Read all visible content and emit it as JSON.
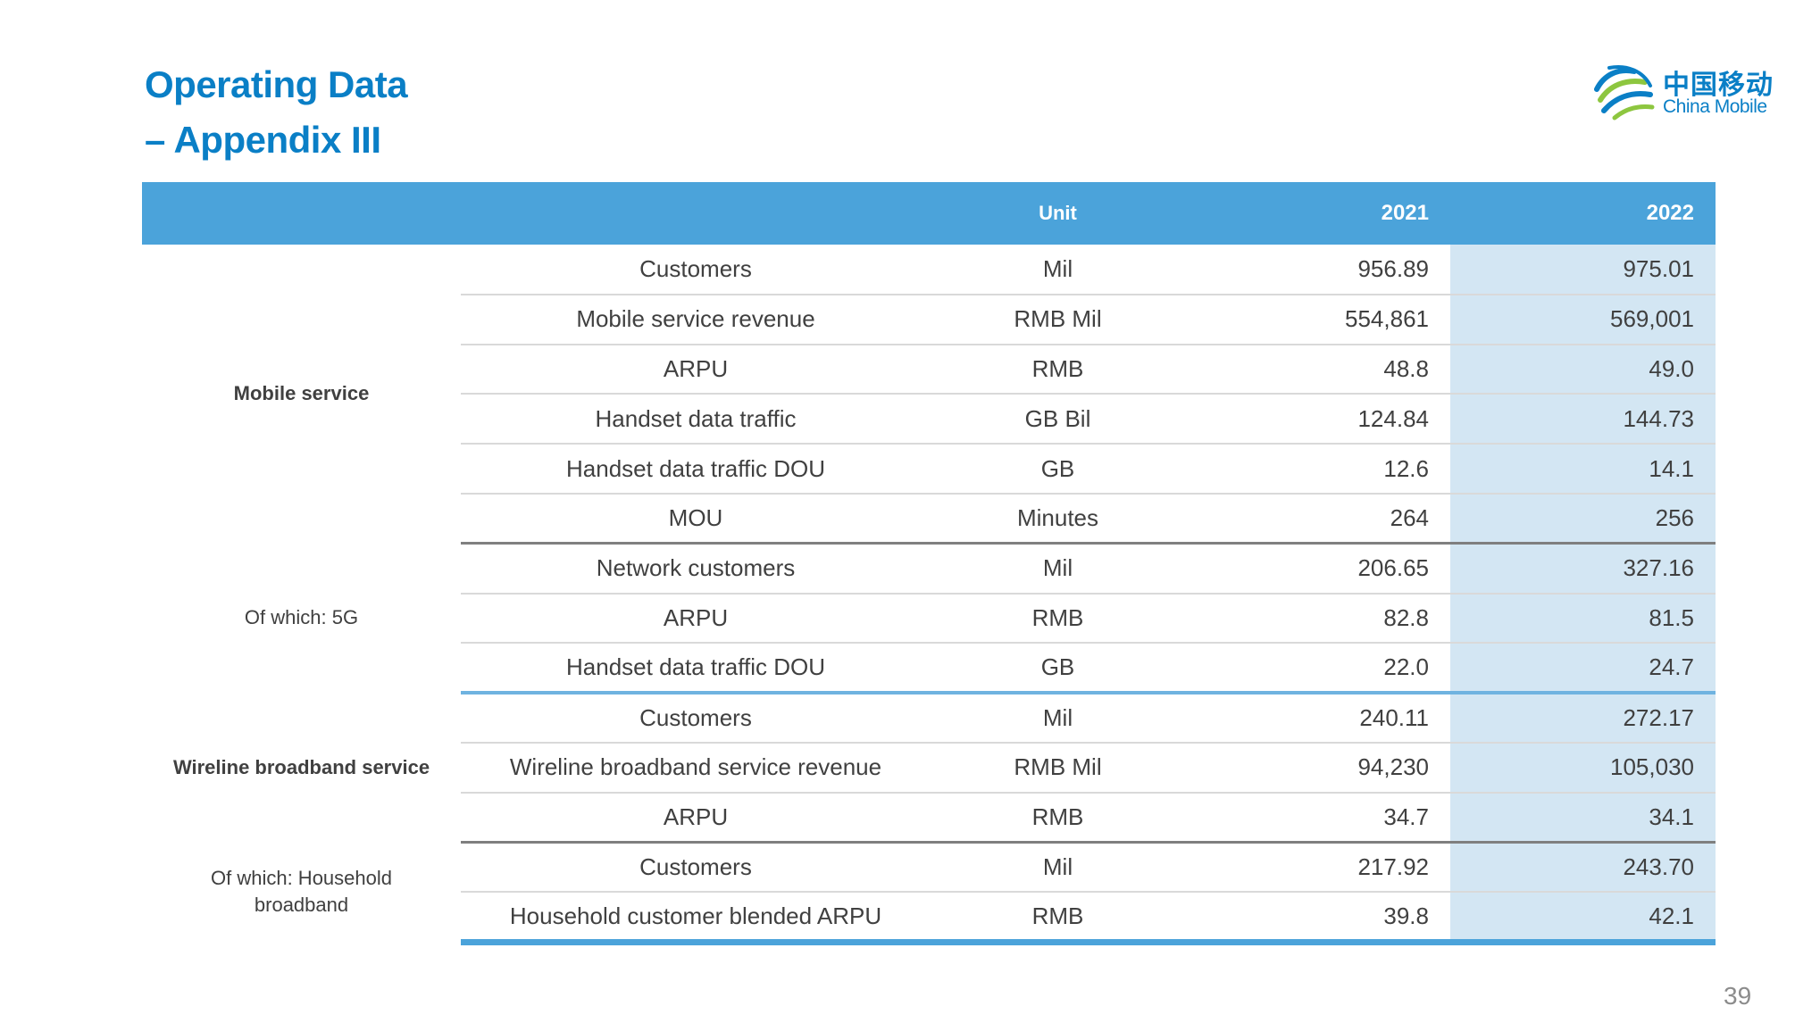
{
  "title": {
    "line1": "Operating Data",
    "line2": "– Appendix III"
  },
  "logo": {
    "cn": "中国移动",
    "en": "China Mobile",
    "icon": "china-mobile-logo-icon"
  },
  "header": {
    "unit": "Unit",
    "year1": "2021",
    "year2": "2022"
  },
  "groups": [
    {
      "label": "Mobile service",
      "rows": [
        {
          "metric": "Customers",
          "unit": "Mil",
          "y2021": "956.89",
          "y2022": "975.01"
        },
        {
          "metric": "Mobile service revenue",
          "unit": "RMB Mil",
          "y2021": "554,861",
          "y2022": "569,001"
        },
        {
          "metric": "ARPU",
          "unit": "RMB",
          "y2021": "48.8",
          "y2022": "49.0"
        },
        {
          "metric": "Handset data traffic",
          "unit": "GB Bil",
          "y2021": "124.84",
          "y2022": "144.73"
        },
        {
          "metric": "Handset data traffic DOU",
          "unit": "GB",
          "y2021": "12.6",
          "y2022": "14.1"
        },
        {
          "metric": "MOU",
          "unit": "Minutes",
          "y2021": "264",
          "y2022": "256"
        }
      ]
    },
    {
      "label": "Of which: 5G",
      "rows": [
        {
          "metric": "Network customers",
          "unit": "Mil",
          "y2021": "206.65",
          "y2022": "327.16"
        },
        {
          "metric": "ARPU",
          "unit": "RMB",
          "y2021": "82.8",
          "y2022": "81.5"
        },
        {
          "metric": "Handset data traffic DOU",
          "unit": "GB",
          "y2021": "22.0",
          "y2022": "24.7"
        }
      ]
    },
    {
      "label": "Wireline broadband service",
      "rows": [
        {
          "metric": "Customers",
          "unit": "Mil",
          "y2021": "240.11",
          "y2022": "272.17"
        },
        {
          "metric": "Wireline broadband service revenue",
          "unit": "RMB Mil",
          "y2021": "94,230",
          "y2022": "105,030"
        },
        {
          "metric": "ARPU",
          "unit": "RMB",
          "y2021": "34.7",
          "y2022": "34.1"
        }
      ]
    },
    {
      "label": "Of which: Household broadband",
      "rows": [
        {
          "metric": "Customers",
          "unit": "Mil",
          "y2021": "217.92",
          "y2022": "243.70"
        },
        {
          "metric": "Household customer blended ARPU",
          "unit": "RMB",
          "y2021": "39.8",
          "y2022": "42.1"
        }
      ]
    }
  ],
  "page_number": "39"
}
